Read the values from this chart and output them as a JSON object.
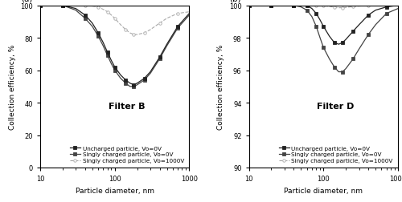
{
  "panel_a": {
    "title": "Filter B",
    "ylabel": "Collection efficiency, %",
    "xlabel": "Particle diameter, nm",
    "xlim": [
      10,
      1000
    ],
    "ylim": [
      0,
      100
    ],
    "yticks": [
      0,
      20,
      40,
      60,
      80,
      100
    ],
    "series": {
      "uncharged_V0": {
        "label": "Uncharged particle, Vo=0V",
        "color": "#222222",
        "marker": "s",
        "markersize": 2.5,
        "markevery": 2,
        "linestyle": "-",
        "linewidth": 0.9,
        "x": [
          10,
          14,
          20,
          30,
          40,
          50,
          60,
          70,
          80,
          90,
          100,
          120,
          140,
          160,
          180,
          200,
          250,
          300,
          400,
          500,
          700,
          1000
        ],
        "y": [
          100,
          100,
          100,
          98,
          94,
          89,
          83,
          77,
          71,
          66,
          62,
          57,
          54,
          52,
          51,
          52,
          55,
          59,
          68,
          76,
          87,
          95
        ]
      },
      "singly_V0": {
        "label": "Singly charged particle, Vo=0V",
        "color": "#444444",
        "marker": "s",
        "markersize": 2.5,
        "markevery": 2,
        "linestyle": "-",
        "linewidth": 0.9,
        "x": [
          10,
          14,
          20,
          30,
          40,
          50,
          60,
          70,
          80,
          90,
          100,
          120,
          140,
          160,
          180,
          200,
          250,
          300,
          400,
          500,
          700,
          1000
        ],
        "y": [
          100,
          100,
          100,
          97,
          92,
          87,
          81,
          75,
          69,
          64,
          60,
          55,
          52,
          50,
          50,
          51,
          54,
          58,
          67,
          75,
          86,
          94
        ]
      },
      "singly_V1000": {
        "label": "Singly charged particle, Vo=1000V",
        "color": "#aaaaaa",
        "marker": "o",
        "markersize": 2.5,
        "markevery": 2,
        "linestyle": "--",
        "linewidth": 0.8,
        "x": [
          10,
          14,
          20,
          30,
          40,
          50,
          60,
          70,
          80,
          90,
          100,
          120,
          140,
          160,
          180,
          200,
          250,
          300,
          400,
          500,
          700,
          1000
        ],
        "y": [
          100,
          100,
          100,
          100,
          100,
          99.5,
          99,
          97.5,
          96,
          94,
          92,
          88,
          85,
          83,
          82,
          82,
          83,
          85,
          89,
          92,
          95,
          96
        ]
      }
    }
  },
  "panel_b": {
    "title": "Filter D",
    "ylabel": "Collection efficiency, %",
    "xlabel": "Particle diameter, nm",
    "xlim": [
      10,
      1000
    ],
    "ylim": [
      90,
      100
    ],
    "yticks": [
      90,
      92,
      94,
      96,
      98,
      100
    ],
    "series": {
      "uncharged_V0": {
        "label": "Uncharged particle, Vo=0V",
        "color": "#222222",
        "marker": "s",
        "markersize": 2.5,
        "markevery": 2,
        "linestyle": "-",
        "linewidth": 0.9,
        "x": [
          10,
          14,
          20,
          30,
          40,
          50,
          60,
          70,
          80,
          90,
          100,
          120,
          140,
          160,
          180,
          200,
          250,
          300,
          400,
          500,
          700,
          1000
        ],
        "y": [
          100,
          100,
          100,
          100,
          100,
          100,
          100,
          99.8,
          99.5,
          99.1,
          98.7,
          98.1,
          97.7,
          97.6,
          97.7,
          97.9,
          98.4,
          98.8,
          99.4,
          99.7,
          99.9,
          100
        ]
      },
      "singly_V0": {
        "label": "Singly charged particle, Vo=0V",
        "color": "#444444",
        "marker": "s",
        "markersize": 2.5,
        "markevery": 2,
        "linestyle": "-",
        "linewidth": 0.9,
        "x": [
          10,
          14,
          20,
          30,
          40,
          50,
          60,
          70,
          80,
          90,
          100,
          120,
          140,
          160,
          180,
          200,
          250,
          300,
          400,
          500,
          700,
          1000
        ],
        "y": [
          100,
          100,
          100,
          100,
          100,
          99.9,
          99.7,
          99.3,
          98.7,
          98.0,
          97.4,
          96.7,
          96.2,
          95.9,
          95.9,
          96.1,
          96.7,
          97.3,
          98.2,
          98.8,
          99.5,
          99.8
        ]
      },
      "singly_V1000": {
        "label": "Singly charged particle, Vo=1000V",
        "color": "#aaaaaa",
        "marker": "o",
        "markersize": 2.5,
        "markevery": 2,
        "linestyle": "--",
        "linewidth": 0.8,
        "x": [
          10,
          14,
          20,
          30,
          40,
          50,
          60,
          70,
          80,
          90,
          100,
          120,
          140,
          160,
          180,
          200,
          250,
          300,
          400,
          500,
          700,
          1000
        ],
        "y": [
          100,
          100,
          100,
          100,
          100,
          100,
          100,
          100,
          100,
          99.99,
          99.97,
          99.93,
          99.88,
          99.85,
          99.85,
          99.87,
          99.92,
          99.95,
          99.98,
          99.99,
          100,
          100
        ]
      }
    }
  },
  "label_fontsize": 6.5,
  "tick_fontsize": 6,
  "title_fontsize": 8,
  "legend_fontsize": 5.2
}
